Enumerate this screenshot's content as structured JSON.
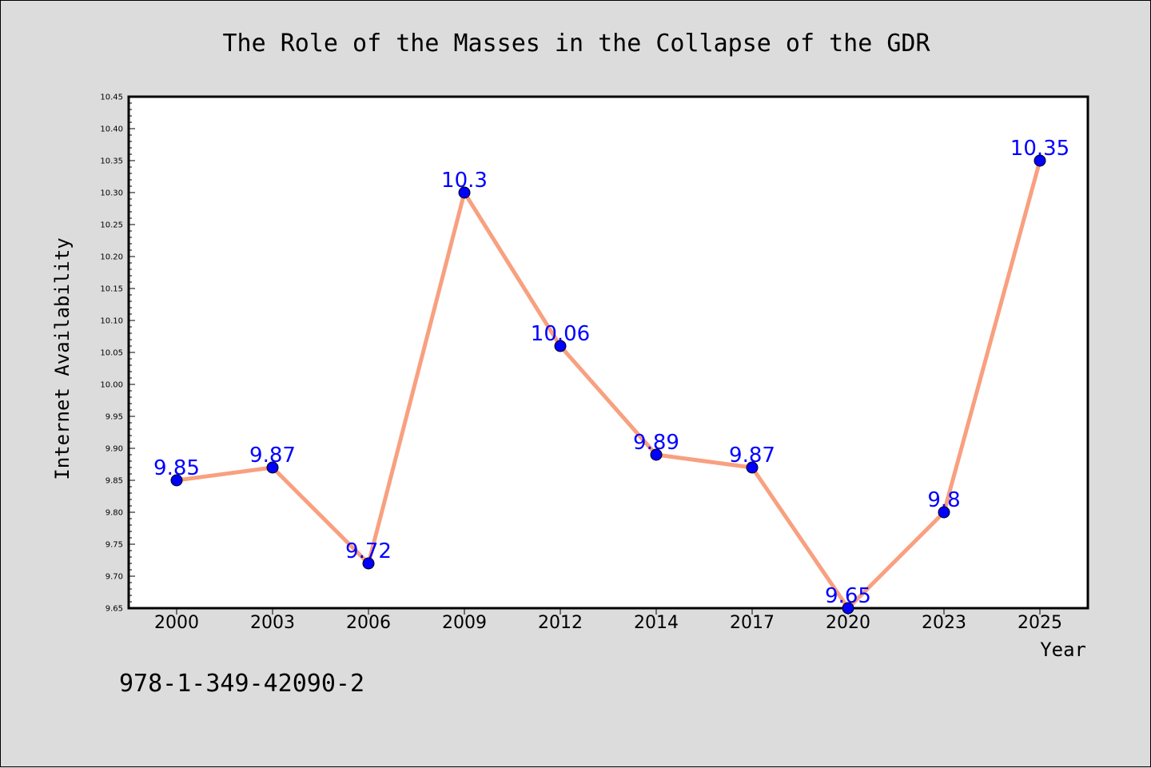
{
  "colors": {
    "background": "#dcdcdc",
    "plot_background": "#ffffff",
    "line": "#f8a07f",
    "marker": "#0000ff",
    "data_label": "#0000ff"
  },
  "footer": {
    "isbn": "978-1-349-42090-2"
  },
  "chart_data": {
    "type": "line",
    "title": "The Role of the Masses in the Collapse of the GDR",
    "xlabel": "Year",
    "ylabel": "Internet Availability",
    "categories": [
      "2000",
      "2003",
      "2006",
      "2009",
      "2012",
      "2014",
      "2017",
      "2020",
      "2023",
      "2025"
    ],
    "series": [
      {
        "values": [
          9.85,
          9.87,
          9.72,
          10.3,
          10.06,
          9.89,
          9.87,
          9.65,
          9.8,
          10.35
        ],
        "labels": [
          "9.85",
          "9.87",
          "9.72",
          "10.3",
          "10.06",
          "9.89",
          "9.87",
          "9.65",
          "9.8",
          "10.35"
        ]
      }
    ],
    "ylim": [
      9.65,
      10.45
    ],
    "yticks": [
      "9.65",
      "9.70",
      "9.75",
      "9.80",
      "9.85",
      "9.90",
      "9.95",
      "10.00",
      "10.05",
      "10.10",
      "10.15",
      "10.20",
      "10.25",
      "10.30",
      "10.35",
      "10.40",
      "10.45"
    ],
    "grid": false,
    "legend": "none",
    "markers": true
  }
}
